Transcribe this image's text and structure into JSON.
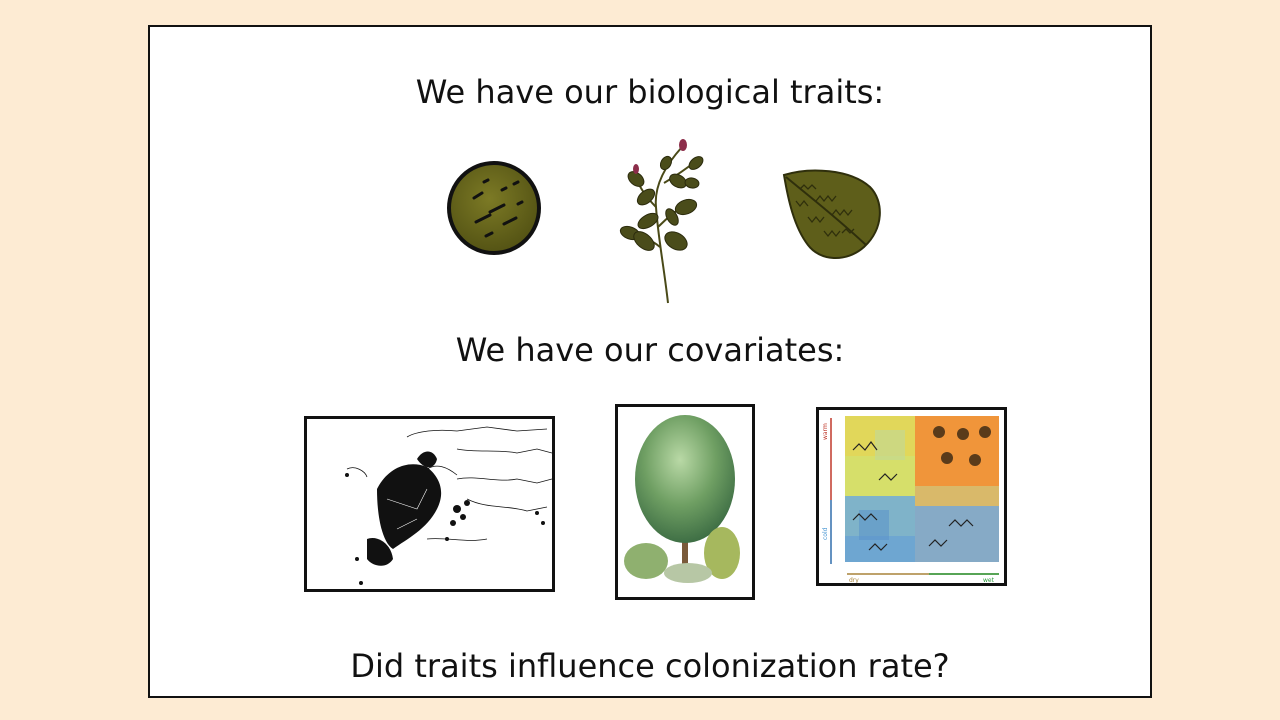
{
  "slide": {
    "heading_traits": "We have our biological traits:",
    "heading_covariates": "We have our covariates:",
    "question": "Did traits influence colonization rate?"
  },
  "trait_icons": [
    "seed-icon",
    "branch-icon",
    "leaf-icon"
  ],
  "covariate_images": [
    "europe-distribution-map",
    "tree-illustration",
    "climate-gradient-panel"
  ],
  "climate_panel": {
    "y_top": "warm",
    "y_bottom": "cold",
    "x_left": "dry",
    "x_right": "wet"
  },
  "colors": {
    "background": "#fdebd3",
    "olive": "#6b6a1f",
    "dark_olive": "#3f3f12",
    "warm_arrow": "#c0392b",
    "cold_arrow": "#3b8fd0",
    "dry_arrow": "#a8843a",
    "wet_arrow": "#2e9a3e"
  }
}
